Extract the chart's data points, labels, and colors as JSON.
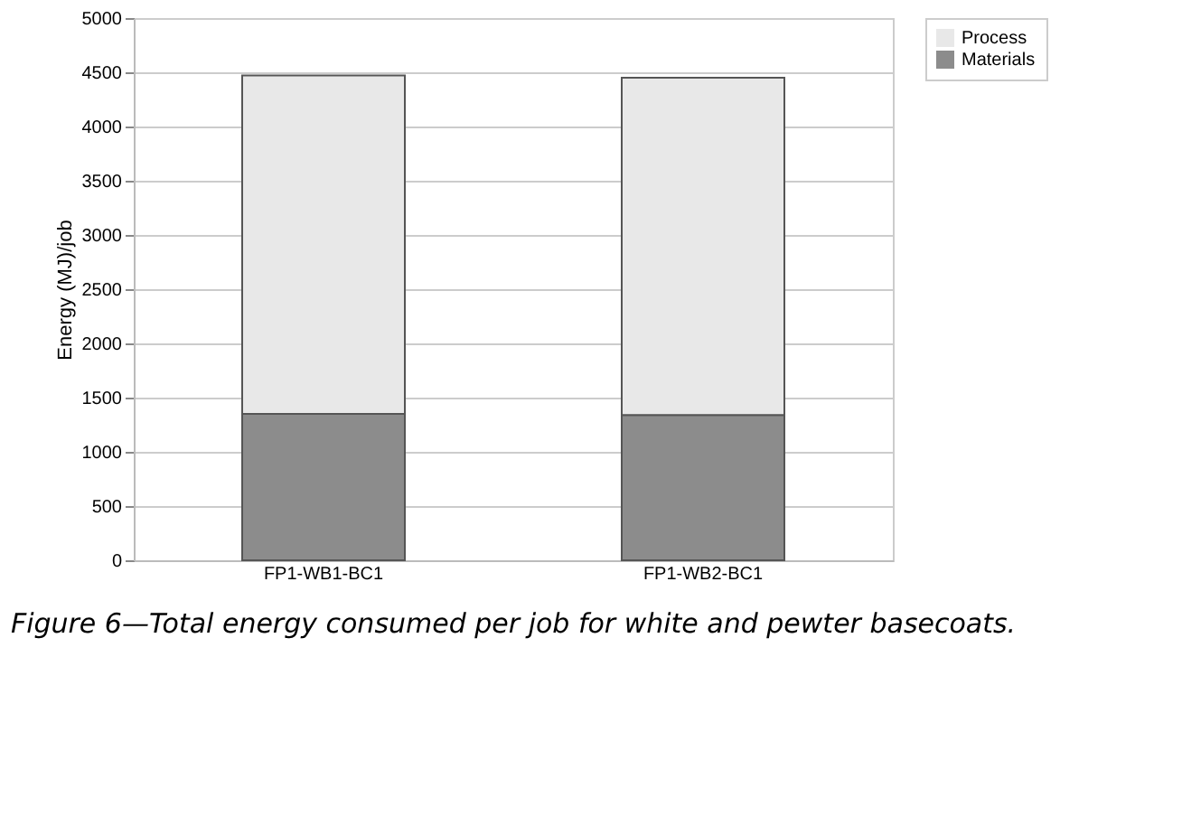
{
  "chart_data": {
    "type": "bar",
    "stacked": true,
    "ylabel": "Energy (MJ)/job",
    "categories": [
      "FP1-WB1-BC1",
      "FP1-WB2-BC1"
    ],
    "series": [
      {
        "name": "Materials",
        "color": "#8c8c8c",
        "values": [
          1350,
          1340
        ]
      },
      {
        "name": "Process",
        "color": "#e8e8e8",
        "values": [
          3120,
          3110
        ]
      }
    ],
    "ylim": [
      0,
      5000
    ],
    "yticks": [
      0,
      500,
      1000,
      1500,
      2000,
      2500,
      3000,
      3500,
      4000,
      4500,
      5000
    ],
    "grid": "y",
    "legend": "right",
    "annotations": [
      "Figure 6—Total energy consumed per job for white and pewter basecoats."
    ]
  }
}
